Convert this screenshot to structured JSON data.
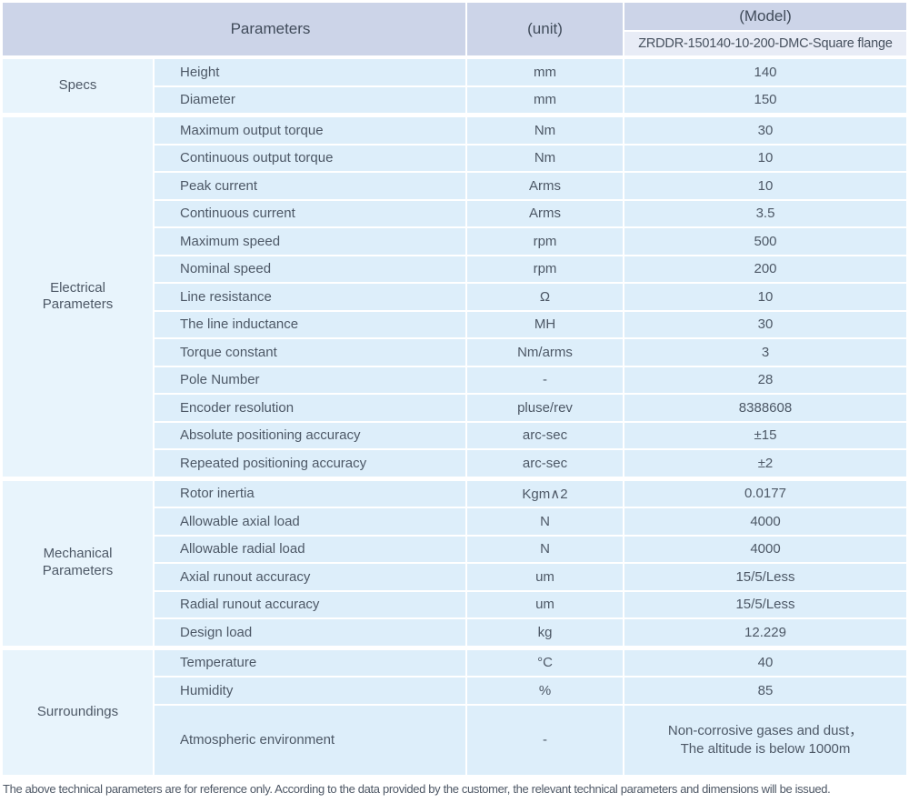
{
  "header": {
    "parameters_label": "Parameters",
    "unit_label": "(unit)",
    "model_label": "(Model)",
    "model_value": "ZRDDR-150140-10-200-DMC-Square flange"
  },
  "sections": [
    {
      "label": "Specs",
      "rows": [
        {
          "parameter": "Height",
          "unit": "mm",
          "value": "140"
        },
        {
          "parameter": "Diameter",
          "unit": "mm",
          "value": "150"
        }
      ]
    },
    {
      "label": "Electrical\nParameters",
      "rows": [
        {
          "parameter": "Maximum output torque",
          "unit": "Nm",
          "value": "30"
        },
        {
          "parameter": "Continuous output torque",
          "unit": "Nm",
          "value": "10"
        },
        {
          "parameter": "Peak current",
          "unit": "Arms",
          "value": "10"
        },
        {
          "parameter": "Continuous current",
          "unit": "Arms",
          "value": "3.5"
        },
        {
          "parameter": "Maximum speed",
          "unit": "rpm",
          "value": "500"
        },
        {
          "parameter": "Nominal speed",
          "unit": "rpm",
          "value": "200"
        },
        {
          "parameter": "Line resistance",
          "unit": "Ω",
          "value": "10"
        },
        {
          "parameter": "The line inductance",
          "unit": "MH",
          "value": "30"
        },
        {
          "parameter": "Torque constant",
          "unit": "Nm/arms",
          "value": "3"
        },
        {
          "parameter": "Pole Number",
          "unit": "-",
          "value": "28"
        },
        {
          "parameter": "Encoder resolution",
          "unit": "pluse/rev",
          "value": "8388608"
        },
        {
          "parameter": "Absolute positioning accuracy",
          "unit": "arc-sec",
          "value": "±15"
        },
        {
          "parameter": "Repeated positioning accuracy",
          "unit": "arc-sec",
          "value": "±2"
        }
      ]
    },
    {
      "label": "Mechanical\nParameters",
      "rows": [
        {
          "parameter": "Rotor inertia",
          "unit": "Kgm∧2",
          "value": "0.0177"
        },
        {
          "parameter": "Allowable axial load",
          "unit": "N",
          "value": "4000"
        },
        {
          "parameter": "Allowable radial load",
          "unit": "N",
          "value": "4000"
        },
        {
          "parameter": "Axial runout accuracy",
          "unit": "um",
          "value": "15/5/Less"
        },
        {
          "parameter": "Radial runout accuracy",
          "unit": "um",
          "value": "15/5/Less"
        },
        {
          "parameter": "Design load",
          "unit": "kg",
          "value": "12.229"
        }
      ]
    },
    {
      "label": "Surroundings",
      "rows": [
        {
          "parameter": "Temperature",
          "unit": "°C",
          "value": "40"
        },
        {
          "parameter": "Humidity",
          "unit": "%",
          "value": "85"
        },
        {
          "parameter": "Atmospheric environment",
          "unit": "-",
          "value": "Non-corrosive gases and dust，\nThe altitude is below 1000m",
          "tall": true
        }
      ]
    }
  ],
  "footer": {
    "note": "The above technical parameters are for reference only. According to the data provided by the customer, the relevant technical parameters and dimensions will be issued."
  },
  "colors": {
    "header_bg": "#ccd4e8",
    "model_row_bg": "#e8ecf6",
    "cell_bg": "#ddeefa",
    "category_bg": "#e8f4fc",
    "text": "#4d5866"
  }
}
